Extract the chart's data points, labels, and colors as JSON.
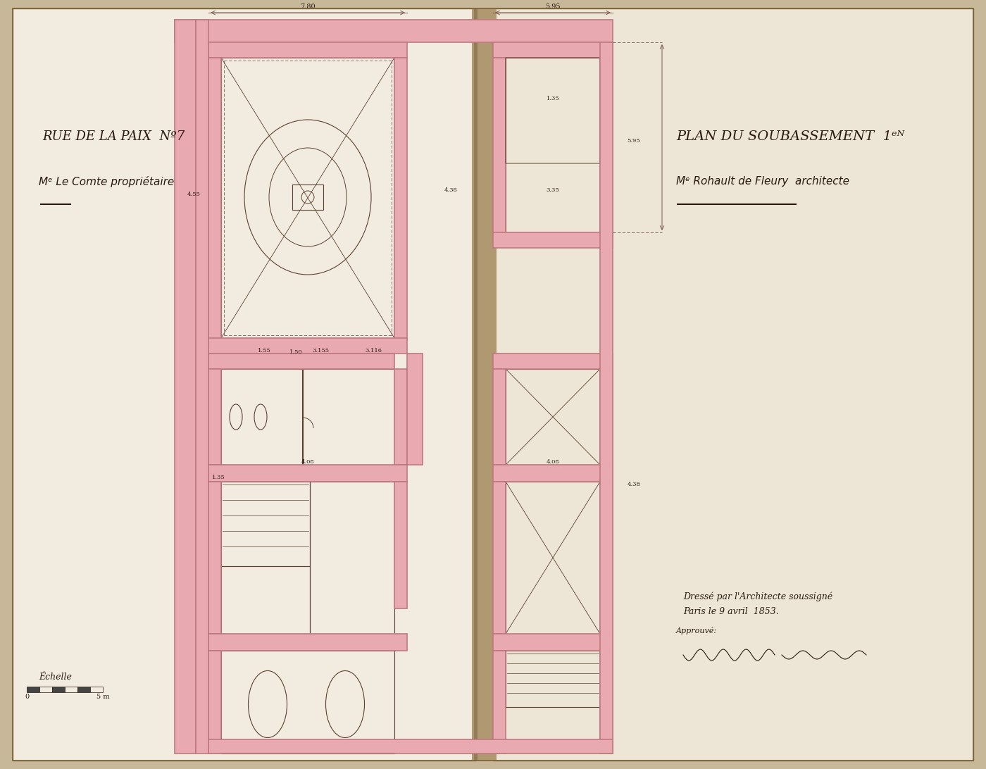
{
  "bg_color": "#c8b89a",
  "page_left_bg": "#f2ece0",
  "page_right_bg": "#ede5d5",
  "wall_fill": "#e8aab0",
  "wall_edge": "#c07880",
  "line_color": "#5a4030",
  "dim_color": "#7a5a50",
  "text_color": "#2a1a10",
  "spine_color": "#6b5535",
  "spine_shadow": "#a08060",
  "title_left": "RUE DE LA PAIX  Nº7",
  "subtitle_left": "Mᵉ Le Comte propriétaire",
  "dash_left": "—",
  "title_right": "PLAN DU SOUBASSEMENT  1ᵉᴺ",
  "subtitle_right": "Mᵉ Rohault de Fleury  architecte",
  "dash_right": "—",
  "caption": "Dressé par l'Architecte soussigné\nParis le 9 avril  1853.",
  "scale_label": "Échelle",
  "figsize": [
    14.0,
    10.92
  ],
  "dpi": 100
}
